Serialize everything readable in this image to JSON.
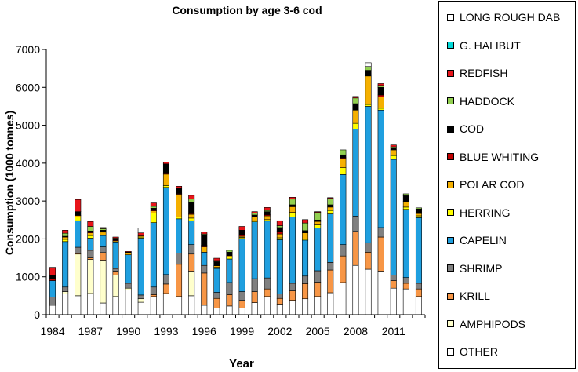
{
  "chart_data": {
    "type": "bar",
    "stacked": true,
    "title": "Consumption by age 3-6 cod",
    "xlabel": "Year",
    "ylabel": "Consumption (1000 tonnes)",
    "ylim": [
      0,
      7000
    ],
    "yticks": [
      0,
      1000,
      2000,
      3000,
      4000,
      5000,
      6000,
      7000
    ],
    "categories": [
      1984,
      1985,
      1986,
      1987,
      1988,
      1989,
      1990,
      1991,
      1992,
      1993,
      1994,
      1995,
      1996,
      1997,
      1998,
      1999,
      2000,
      2001,
      2002,
      2003,
      2004,
      2005,
      2006,
      2007,
      2008,
      2009,
      2010,
      2011,
      2012,
      2013
    ],
    "xtick_labels": [
      "1984",
      "1987",
      "1990",
      "1993",
      "1996",
      "1999",
      "2002",
      "2005",
      "2008",
      "2011"
    ],
    "xtick_years": [
      1984,
      1987,
      1990,
      1993,
      1996,
      1999,
      2002,
      2005,
      2008,
      2011
    ],
    "series": [
      {
        "name": "OTHER",
        "color": "#ffffff",
        "values": [
          250,
          550,
          500,
          560,
          310,
          480,
          650,
          330,
          480,
          560,
          480,
          500,
          250,
          180,
          230,
          180,
          320,
          480,
          280,
          380,
          420,
          480,
          580,
          850,
          1300,
          1200,
          1150,
          700,
          680,
          480
        ]
      },
      {
        "name": "AMPHIPODS",
        "color": "#ffffcc",
        "values": [
          0,
          60,
          1100,
          900,
          1130,
          570,
          50,
          90,
          0,
          0,
          0,
          650,
          0,
          0,
          0,
          0,
          0,
          0,
          0,
          0,
          0,
          0,
          0,
          0,
          0,
          0,
          0,
          0,
          0,
          0
        ]
      },
      {
        "name": "KRILL",
        "color": "#f79646",
        "values": [
          0,
          0,
          20,
          40,
          200,
          100,
          0,
          0,
          50,
          250,
          850,
          450,
          850,
          250,
          300,
          200,
          290,
          200,
          150,
          250,
          400,
          380,
          600,
          700,
          900,
          450,
          900,
          200,
          150,
          200
        ]
      },
      {
        "name": "SHRIMP",
        "color": "#808080",
        "values": [
          220,
          120,
          160,
          200,
          150,
          70,
          130,
          100,
          200,
          250,
          300,
          250,
          200,
          160,
          320,
          230,
          340,
          290,
          120,
          200,
          200,
          300,
          200,
          300,
          400,
          250,
          250,
          150,
          150,
          150
        ]
      },
      {
        "name": "CAPELIN",
        "color": "#1f9fdf",
        "values": [
          430,
          1200,
          700,
          320,
          300,
          700,
          750,
          1500,
          1700,
          2300,
          900,
          630,
          350,
          630,
          620,
          1400,
          1500,
          1500,
          1430,
          1750,
          950,
          1130,
          1280,
          1850,
          2300,
          3600,
          3100,
          3050,
          1800,
          1730
        ]
      },
      {
        "name": "HERRING",
        "color": "#ffff00",
        "values": [
          0,
          60,
          100,
          70,
          0,
          0,
          0,
          30,
          250,
          50,
          50,
          70,
          0,
          30,
          60,
          30,
          30,
          40,
          50,
          120,
          30,
          80,
          90,
          180,
          150,
          50,
          50,
          100,
          60,
          50
        ]
      },
      {
        "name": "POLAR COD",
        "color": "#f5b000",
        "values": [
          0,
          60,
          40,
          70,
          90,
          30,
          50,
          30,
          60,
          300,
          600,
          100,
          140,
          40,
          30,
          30,
          100,
          100,
          100,
          150,
          160,
          90,
          90,
          250,
          350,
          750,
          300,
          150,
          150,
          60
        ]
      },
      {
        "name": "BLUE WHITING",
        "color": "#c00000",
        "values": [
          60,
          0,
          0,
          20,
          20,
          20,
          0,
          0,
          20,
          20,
          20,
          20,
          40,
          0,
          0,
          30,
          0,
          30,
          70,
          0,
          0,
          0,
          0,
          20,
          0,
          0,
          50,
          0,
          0,
          20
        ]
      },
      {
        "name": "COD",
        "color": "#000000",
        "values": [
          90,
          20,
          100,
          30,
          30,
          30,
          20,
          0,
          50,
          250,
          140,
          300,
          280,
          110,
          90,
          120,
          50,
          80,
          100,
          50,
          60,
          40,
          60,
          70,
          170,
          150,
          200,
          50,
          150,
          100
        ]
      },
      {
        "name": "HADDOCK",
        "color": "#92d050",
        "values": [
          0,
          80,
          0,
          120,
          40,
          20,
          0,
          0,
          50,
          0,
          0,
          80,
          20,
          30,
          50,
          10,
          50,
          30,
          50,
          150,
          200,
          200,
          170,
          130,
          150,
          100,
          50,
          30,
          50,
          30
        ]
      },
      {
        "name": "REDFISH",
        "color": "#e8141a",
        "values": [
          200,
          80,
          320,
          130,
          30,
          30,
          20,
          80,
          90,
          50,
          50,
          100,
          50,
          60,
          0,
          100,
          40,
          80,
          130,
          50,
          90,
          20,
          20,
          0,
          40,
          0,
          50,
          50,
          0,
          0
        ]
      },
      {
        "name": "G. HALIBUT",
        "color": "#00d8d8",
        "values": [
          0,
          0,
          0,
          0,
          0,
          0,
          0,
          0,
          0,
          0,
          0,
          0,
          0,
          0,
          0,
          0,
          0,
          0,
          0,
          0,
          0,
          0,
          0,
          0,
          0,
          0,
          0,
          0,
          0,
          0
        ]
      },
      {
        "name": "LONG ROUGH DAB",
        "color": "#ffffff",
        "values": [
          0,
          0,
          0,
          0,
          0,
          0,
          0,
          130,
          0,
          0,
          0,
          0,
          0,
          0,
          0,
          0,
          0,
          0,
          0,
          0,
          0,
          0,
          0,
          0,
          0,
          100,
          0,
          0,
          0,
          0
        ]
      }
    ]
  },
  "legend": {
    "items": [
      {
        "label": "LONG ROUGH DAB",
        "color": "#ffffff"
      },
      {
        "label": "G. HALIBUT",
        "color": "#00d8d8"
      },
      {
        "label": "REDFISH",
        "color": "#e8141a"
      },
      {
        "label": "HADDOCK",
        "color": "#92d050"
      },
      {
        "label": "COD",
        "color": "#000000"
      },
      {
        "label": "BLUE WHITING",
        "color": "#c00000"
      },
      {
        "label": "POLAR COD",
        "color": "#f5b000"
      },
      {
        "label": "HERRING",
        "color": "#ffff00"
      },
      {
        "label": "CAPELIN",
        "color": "#1f9fdf"
      },
      {
        "label": "SHRIMP",
        "color": "#808080"
      },
      {
        "label": "KRILL",
        "color": "#f79646"
      },
      {
        "label": "AMPHIPODS",
        "color": "#ffffcc"
      },
      {
        "label": "OTHER",
        "color": "#ffffff"
      }
    ]
  }
}
